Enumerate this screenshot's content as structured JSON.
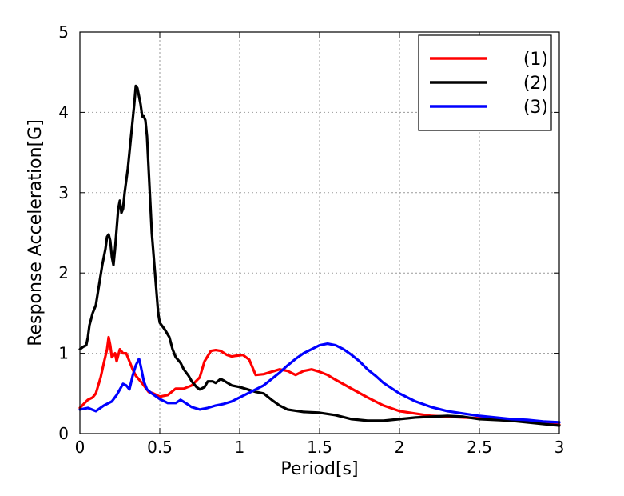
{
  "chart_data": {
    "type": "line",
    "title": "",
    "xlabel": "Period[s]",
    "ylabel": "Response Acceleration[G]",
    "xlim": [
      0,
      3
    ],
    "ylim": [
      0,
      5
    ],
    "xticks": [
      "0",
      "0.5",
      "1",
      "1.5",
      "2",
      "2.5",
      "3"
    ],
    "yticks": [
      "0",
      "1",
      "2",
      "3",
      "4",
      "5"
    ],
    "grid": true,
    "legend_position": "top-right",
    "series": [
      {
        "name": "(1)",
        "color": "#ff0000",
        "points": [
          [
            0,
            0.32
          ],
          [
            0.03,
            0.38
          ],
          [
            0.05,
            0.42
          ],
          [
            0.08,
            0.45
          ],
          [
            0.1,
            0.5
          ],
          [
            0.13,
            0.7
          ],
          [
            0.15,
            0.88
          ],
          [
            0.17,
            1.05
          ],
          [
            0.18,
            1.2
          ],
          [
            0.19,
            1.1
          ],
          [
            0.2,
            0.95
          ],
          [
            0.22,
            1.0
          ],
          [
            0.23,
            0.9
          ],
          [
            0.25,
            1.05
          ],
          [
            0.27,
            1.0
          ],
          [
            0.29,
            1.0
          ],
          [
            0.31,
            0.9
          ],
          [
            0.33,
            0.8
          ],
          [
            0.35,
            0.72
          ],
          [
            0.38,
            0.65
          ],
          [
            0.4,
            0.6
          ],
          [
            0.43,
            0.52
          ],
          [
            0.46,
            0.5
          ],
          [
            0.5,
            0.46
          ],
          [
            0.55,
            0.48
          ],
          [
            0.6,
            0.56
          ],
          [
            0.65,
            0.56
          ],
          [
            0.7,
            0.6
          ],
          [
            0.75,
            0.7
          ],
          [
            0.78,
            0.9
          ],
          [
            0.82,
            1.03
          ],
          [
            0.85,
            1.04
          ],
          [
            0.88,
            1.03
          ],
          [
            0.92,
            0.98
          ],
          [
            0.95,
            0.96
          ],
          [
            0.98,
            0.97
          ],
          [
            1.02,
            0.98
          ],
          [
            1.06,
            0.92
          ],
          [
            1.1,
            0.73
          ],
          [
            1.15,
            0.74
          ],
          [
            1.2,
            0.77
          ],
          [
            1.25,
            0.8
          ],
          [
            1.3,
            0.78
          ],
          [
            1.35,
            0.73
          ],
          [
            1.4,
            0.78
          ],
          [
            1.45,
            0.8
          ],
          [
            1.5,
            0.77
          ],
          [
            1.55,
            0.73
          ],
          [
            1.6,
            0.67
          ],
          [
            1.7,
            0.56
          ],
          [
            1.8,
            0.45
          ],
          [
            1.9,
            0.35
          ],
          [
            2.0,
            0.28
          ],
          [
            2.1,
            0.25
          ],
          [
            2.2,
            0.22
          ],
          [
            2.3,
            0.21
          ],
          [
            2.5,
            0.19
          ],
          [
            2.7,
            0.16
          ],
          [
            2.9,
            0.13
          ],
          [
            3.0,
            0.11
          ]
        ]
      },
      {
        "name": "(2)",
        "color": "#000000",
        "points": [
          [
            0,
            1.05
          ],
          [
            0.02,
            1.08
          ],
          [
            0.04,
            1.1
          ],
          [
            0.05,
            1.2
          ],
          [
            0.06,
            1.35
          ],
          [
            0.08,
            1.5
          ],
          [
            0.1,
            1.6
          ],
          [
            0.12,
            1.85
          ],
          [
            0.14,
            2.1
          ],
          [
            0.16,
            2.3
          ],
          [
            0.17,
            2.45
          ],
          [
            0.18,
            2.48
          ],
          [
            0.19,
            2.4
          ],
          [
            0.2,
            2.2
          ],
          [
            0.21,
            2.1
          ],
          [
            0.22,
            2.3
          ],
          [
            0.23,
            2.55
          ],
          [
            0.24,
            2.8
          ],
          [
            0.25,
            2.9
          ],
          [
            0.26,
            2.75
          ],
          [
            0.27,
            2.8
          ],
          [
            0.28,
            3.0
          ],
          [
            0.3,
            3.3
          ],
          [
            0.32,
            3.7
          ],
          [
            0.34,
            4.1
          ],
          [
            0.35,
            4.33
          ],
          [
            0.36,
            4.3
          ],
          [
            0.37,
            4.2
          ],
          [
            0.38,
            4.1
          ],
          [
            0.39,
            3.95
          ],
          [
            0.4,
            3.95
          ],
          [
            0.41,
            3.9
          ],
          [
            0.42,
            3.7
          ],
          [
            0.43,
            3.3
          ],
          [
            0.45,
            2.5
          ],
          [
            0.47,
            2.0
          ],
          [
            0.49,
            1.5
          ],
          [
            0.5,
            1.38
          ],
          [
            0.53,
            1.3
          ],
          [
            0.56,
            1.2
          ],
          [
            0.58,
            1.05
          ],
          [
            0.6,
            0.95
          ],
          [
            0.63,
            0.88
          ],
          [
            0.65,
            0.8
          ],
          [
            0.68,
            0.72
          ],
          [
            0.7,
            0.65
          ],
          [
            0.73,
            0.58
          ],
          [
            0.75,
            0.55
          ],
          [
            0.78,
            0.58
          ],
          [
            0.8,
            0.65
          ],
          [
            0.83,
            0.65
          ],
          [
            0.85,
            0.63
          ],
          [
            0.88,
            0.68
          ],
          [
            0.9,
            0.66
          ],
          [
            0.95,
            0.6
          ],
          [
            1.0,
            0.58
          ],
          [
            1.05,
            0.55
          ],
          [
            1.1,
            0.52
          ],
          [
            1.15,
            0.5
          ],
          [
            1.2,
            0.42
          ],
          [
            1.25,
            0.35
          ],
          [
            1.3,
            0.3
          ],
          [
            1.4,
            0.27
          ],
          [
            1.5,
            0.26
          ],
          [
            1.6,
            0.23
          ],
          [
            1.7,
            0.18
          ],
          [
            1.8,
            0.16
          ],
          [
            1.9,
            0.16
          ],
          [
            2.0,
            0.18
          ],
          [
            2.1,
            0.2
          ],
          [
            2.2,
            0.21
          ],
          [
            2.3,
            0.22
          ],
          [
            2.4,
            0.21
          ],
          [
            2.5,
            0.18
          ],
          [
            2.7,
            0.16
          ],
          [
            2.9,
            0.12
          ],
          [
            3.0,
            0.1
          ]
        ]
      },
      {
        "name": "(3)",
        "color": "#0000ff",
        "points": [
          [
            0,
            0.3
          ],
          [
            0.05,
            0.32
          ],
          [
            0.1,
            0.28
          ],
          [
            0.15,
            0.35
          ],
          [
            0.2,
            0.4
          ],
          [
            0.23,
            0.48
          ],
          [
            0.25,
            0.55
          ],
          [
            0.27,
            0.62
          ],
          [
            0.29,
            0.6
          ],
          [
            0.31,
            0.55
          ],
          [
            0.33,
            0.72
          ],
          [
            0.35,
            0.85
          ],
          [
            0.37,
            0.93
          ],
          [
            0.38,
            0.85
          ],
          [
            0.4,
            0.65
          ],
          [
            0.42,
            0.55
          ],
          [
            0.45,
            0.5
          ],
          [
            0.5,
            0.43
          ],
          [
            0.55,
            0.38
          ],
          [
            0.6,
            0.38
          ],
          [
            0.63,
            0.42
          ],
          [
            0.67,
            0.37
          ],
          [
            0.7,
            0.33
          ],
          [
            0.75,
            0.3
          ],
          [
            0.8,
            0.32
          ],
          [
            0.85,
            0.35
          ],
          [
            0.9,
            0.37
          ],
          [
            0.95,
            0.4
          ],
          [
            1.0,
            0.45
          ],
          [
            1.05,
            0.5
          ],
          [
            1.1,
            0.55
          ],
          [
            1.15,
            0.6
          ],
          [
            1.2,
            0.68
          ],
          [
            1.25,
            0.76
          ],
          [
            1.3,
            0.85
          ],
          [
            1.35,
            0.93
          ],
          [
            1.4,
            1.0
          ],
          [
            1.45,
            1.05
          ],
          [
            1.5,
            1.1
          ],
          [
            1.55,
            1.12
          ],
          [
            1.6,
            1.1
          ],
          [
            1.65,
            1.05
          ],
          [
            1.7,
            0.98
          ],
          [
            1.75,
            0.9
          ],
          [
            1.8,
            0.8
          ],
          [
            1.85,
            0.72
          ],
          [
            1.9,
            0.63
          ],
          [
            2.0,
            0.5
          ],
          [
            2.1,
            0.4
          ],
          [
            2.2,
            0.33
          ],
          [
            2.3,
            0.28
          ],
          [
            2.4,
            0.25
          ],
          [
            2.5,
            0.22
          ],
          [
            2.6,
            0.2
          ],
          [
            2.7,
            0.18
          ],
          [
            2.8,
            0.17
          ],
          [
            2.9,
            0.15
          ],
          [
            3.0,
            0.14
          ]
        ]
      }
    ]
  }
}
